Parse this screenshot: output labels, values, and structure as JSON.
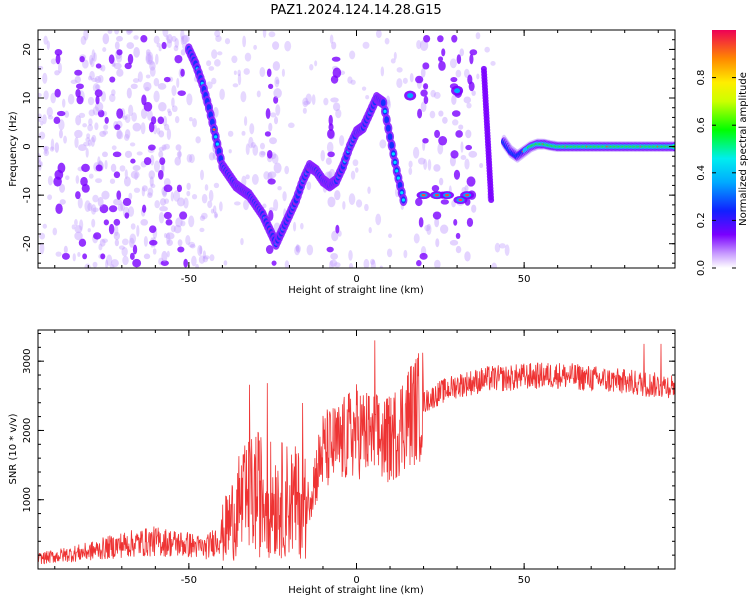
{
  "title": "PAZ1.2024.124.14.28.G15",
  "colors": {
    "snr_line": "#ee3333",
    "axes": "#000000",
    "background": "#ffffff"
  },
  "chart_data": [
    {
      "type": "heatmap",
      "xlabel": "Height of straight line (km)",
      "ylabel": "Frequency (Hz)",
      "xlim": [
        -95,
        95
      ],
      "ylim": [
        -25,
        24
      ],
      "x_ticks": [
        "-50",
        "0",
        "50"
      ],
      "y_ticks": [
        "-20",
        "-10",
        "0",
        "10",
        "20"
      ],
      "colorbar": {
        "label": "Normalized spectral amplitude",
        "range": [
          0.0,
          1.0
        ],
        "ticks": [
          "0.0",
          "0.2",
          "0.4",
          "0.6",
          "0.8"
        ]
      },
      "ridge": {
        "x": [
          -50,
          -48,
          -46,
          -44,
          -42,
          -40,
          -38,
          -36,
          -34,
          -32,
          -30,
          -28,
          -26,
          -24,
          -22,
          -20,
          -18,
          -16,
          -14,
          -12,
          -10,
          -8,
          -6,
          -4,
          -2,
          0,
          2,
          4,
          6,
          8,
          10,
          12,
          14
        ],
        "y": [
          20,
          17,
          13,
          8,
          2,
          -4,
          -6,
          -8,
          -9,
          -10,
          -12,
          -14,
          -17,
          -20,
          -17,
          -14,
          -11,
          -7,
          -4,
          -5,
          -7,
          -8,
          -7,
          -4,
          0,
          3,
          4,
          7,
          10,
          9,
          2,
          -5,
          -11
        ]
      },
      "tail": {
        "x": [
          44,
          46,
          48,
          50,
          52,
          54,
          56,
          58,
          60,
          65,
          70,
          75,
          80,
          85,
          90,
          95
        ],
        "y": [
          1,
          -1,
          -2,
          -1,
          0,
          0.5,
          0.5,
          0.2,
          0,
          0,
          0,
          0,
          0,
          0,
          0,
          0
        ]
      }
    },
    {
      "type": "line",
      "xlabel": "Height of straight line (km)",
      "ylabel": "SNR (10 * v/v)",
      "xlim": [
        -95,
        95
      ],
      "ylim": [
        0,
        3450
      ],
      "x_ticks": [
        "-50",
        "0",
        "50"
      ],
      "y_ticks": [
        "1000",
        "2000",
        "3000"
      ],
      "envelope": {
        "x": [
          -95,
          -80,
          -70,
          -60,
          -50,
          -45,
          -40,
          -35,
          -30,
          -25,
          -20,
          -15,
          -10,
          -5,
          0,
          5,
          10,
          15,
          20,
          25,
          30,
          35,
          40,
          45,
          50,
          60,
          70,
          80,
          90,
          95
        ],
        "y": [
          150,
          250,
          350,
          400,
          350,
          300,
          500,
          900,
          1100,
          1000,
          1000,
          900,
          1700,
          1800,
          2000,
          1900,
          1850,
          2200,
          2400,
          2550,
          2650,
          2700,
          2750,
          2750,
          2780,
          2800,
          2750,
          2700,
          2650,
          2650
        ]
      }
    }
  ]
}
